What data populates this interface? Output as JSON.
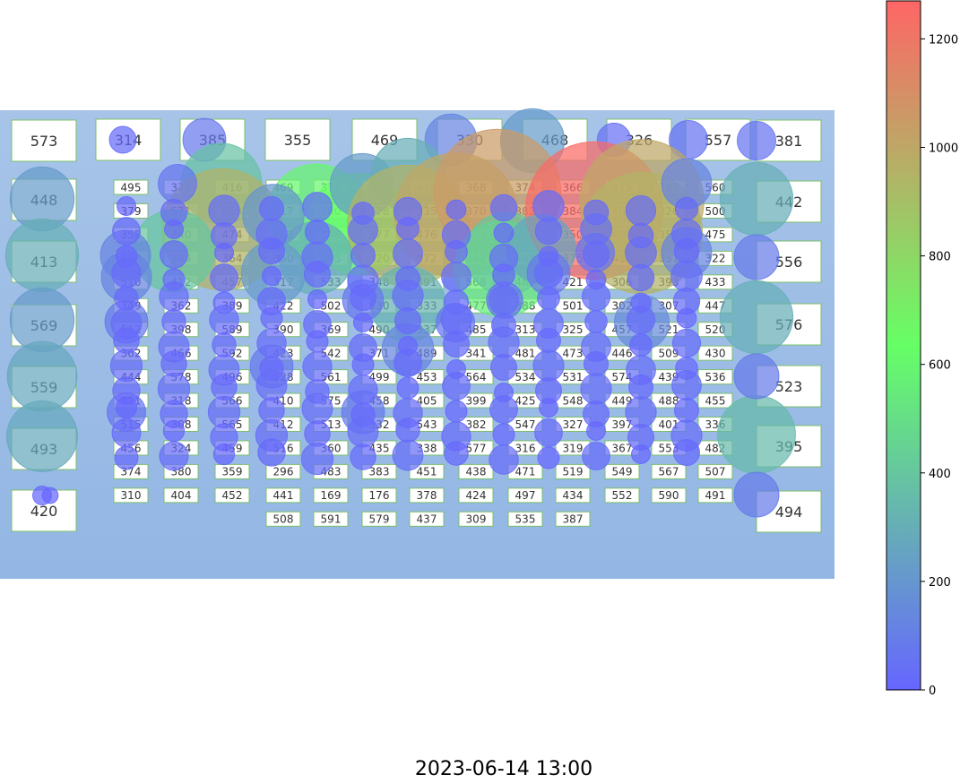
{
  "chart_data": {
    "type": "bubble-map",
    "title": "",
    "timestamp": "2023-06-14 13:00",
    "colorbar": {
      "min": 0,
      "max": 1270,
      "ticks": [
        0,
        200,
        400,
        600,
        800,
        1000,
        1200
      ],
      "tick_labels": [
        "0",
        "200",
        "400",
        "600",
        "800",
        "1000",
        "1200"
      ],
      "colors": [
        "#6666ff",
        "#66ff66",
        "#ff6666"
      ]
    },
    "large_labels_left": [
      "573",
      "448",
      "413",
      "569",
      "559",
      "493",
      "420"
    ],
    "large_labels_top": [
      "314",
      "385",
      "355",
      "469",
      "330",
      "468",
      "326",
      "557"
    ],
    "large_labels_right": [
      "381",
      "442",
      "556",
      "576",
      "523",
      "395",
      "494"
    ],
    "small_label_columns": [
      [
        "495",
        "379",
        "352",
        "308",
        "510",
        "349",
        "512",
        "362",
        "444",
        "321",
        "515",
        "456",
        "374",
        "310"
      ],
      [
        "377",
        "571",
        "440",
        "344",
        "412",
        "362",
        "398",
        "466",
        "578",
        "318",
        "308",
        "324",
        "380",
        "404"
      ],
      [
        "416",
        "553",
        "474",
        "364",
        "457",
        "389",
        "589",
        "592",
        "496",
        "566",
        "565",
        "459",
        "359",
        "452"
      ],
      [
        "469",
        "517",
        "352",
        "350",
        "317",
        "422",
        "390",
        "423",
        "528",
        "410",
        "412",
        "516",
        "296",
        "441",
        "508"
      ],
      [
        "377",
        "380",
        "348",
        "353",
        "533",
        "502",
        "369",
        "542",
        "561",
        "575",
        "513",
        "360",
        "483",
        "169",
        "591"
      ],
      [
        "454",
        "378",
        "377",
        "320",
        "348",
        "530",
        "490",
        "371",
        "499",
        "458",
        "332",
        "435",
        "383",
        "176",
        "579"
      ],
      [
        "418",
        "335",
        "476",
        "572",
        "391",
        "333",
        "337",
        "489",
        "453",
        "405",
        "543",
        "338",
        "451",
        "378",
        "437"
      ],
      [
        "368",
        "370",
        "354",
        "342",
        "568",
        "477",
        "485",
        "341",
        "564",
        "399",
        "382",
        "577",
        "438",
        "424",
        "309"
      ],
      [
        "374",
        "382",
        "542",
        "395",
        "487",
        "388",
        "313",
        "481",
        "534",
        "425",
        "547",
        "316",
        "471",
        "497",
        "535"
      ],
      [
        "366",
        "384",
        "350",
        "375",
        "421",
        "501",
        "325",
        "473",
        "531",
        "548",
        "327",
        "319",
        "519",
        "434",
        "387"
      ],
      [
        "415",
        "400",
        "403",
        "410",
        "306",
        "302",
        "457",
        "446",
        "574",
        "449",
        "397",
        "367",
        "549",
        "552"
      ],
      [
        "392",
        "326",
        "356",
        "331",
        "393",
        "307",
        "521",
        "509",
        "439",
        "488",
        "401",
        "553",
        "567",
        "590"
      ],
      [
        "560",
        "500",
        "475",
        "322",
        "433",
        "447",
        "520",
        "430",
        "536",
        "455",
        "336",
        "482",
        "507",
        "491"
      ]
    ]
  }
}
